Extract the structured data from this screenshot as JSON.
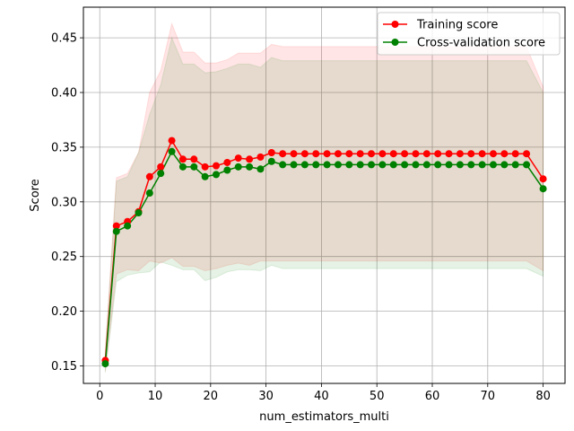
{
  "chart_data": {
    "type": "line",
    "title": "",
    "xlabel": "num_estimators_multi",
    "ylabel": "Score",
    "xlim": [
      -2.95,
      83.95
    ],
    "ylim": [
      0.134,
      0.478
    ],
    "xticks": [
      0,
      10,
      20,
      30,
      40,
      50,
      60,
      70,
      80
    ],
    "yticks": [
      0.15,
      0.2,
      0.25,
      0.3,
      0.35,
      0.4,
      0.45
    ],
    "grid": true,
    "legend_position": "top-right",
    "x": [
      1,
      3,
      5,
      7,
      9,
      11,
      13,
      15,
      17,
      19,
      21,
      23,
      25,
      27,
      29,
      31,
      33,
      35,
      37,
      39,
      41,
      43,
      45,
      47,
      49,
      51,
      53,
      55,
      57,
      59,
      61,
      63,
      65,
      67,
      69,
      71,
      73,
      75,
      77,
      80
    ],
    "series": [
      {
        "name": "Training score",
        "color": "#ff0000",
        "fill_color": "#ff0000",
        "values": [
          0.155,
          0.278,
          0.282,
          0.291,
          0.323,
          0.332,
          0.356,
          0.339,
          0.339,
          0.332,
          0.333,
          0.336,
          0.34,
          0.339,
          0.341,
          0.345,
          0.344,
          0.344,
          0.344,
          0.344,
          0.344,
          0.344,
          0.344,
          0.344,
          0.344,
          0.344,
          0.344,
          0.344,
          0.344,
          0.344,
          0.344,
          0.344,
          0.344,
          0.344,
          0.344,
          0.344,
          0.344,
          0.344,
          0.344,
          0.321
        ],
        "upper": [
          0.165,
          0.322,
          0.326,
          0.345,
          0.4,
          0.42,
          0.463,
          0.437,
          0.437,
          0.427,
          0.427,
          0.43,
          0.436,
          0.436,
          0.436,
          0.444,
          0.442,
          0.442,
          0.442,
          0.442,
          0.442,
          0.442,
          0.442,
          0.442,
          0.442,
          0.442,
          0.442,
          0.442,
          0.442,
          0.442,
          0.442,
          0.442,
          0.442,
          0.442,
          0.442,
          0.442,
          0.442,
          0.442,
          0.442,
          0.405
        ],
        "lower": [
          0.145,
          0.234,
          0.238,
          0.237,
          0.246,
          0.244,
          0.249,
          0.241,
          0.241,
          0.237,
          0.239,
          0.242,
          0.244,
          0.242,
          0.246,
          0.246,
          0.246,
          0.246,
          0.246,
          0.246,
          0.246,
          0.246,
          0.246,
          0.246,
          0.246,
          0.246,
          0.246,
          0.246,
          0.246,
          0.246,
          0.246,
          0.246,
          0.246,
          0.246,
          0.246,
          0.246,
          0.246,
          0.246,
          0.246,
          0.237
        ]
      },
      {
        "name": "Cross-validation score",
        "color": "#008000",
        "fill_color": "#008000",
        "values": [
          0.152,
          0.273,
          0.278,
          0.29,
          0.308,
          0.326,
          0.346,
          0.332,
          0.332,
          0.323,
          0.325,
          0.329,
          0.332,
          0.332,
          0.33,
          0.337,
          0.334,
          0.334,
          0.334,
          0.334,
          0.334,
          0.334,
          0.334,
          0.334,
          0.334,
          0.334,
          0.334,
          0.334,
          0.334,
          0.334,
          0.334,
          0.334,
          0.334,
          0.334,
          0.334,
          0.334,
          0.334,
          0.334,
          0.334,
          0.312
        ],
        "upper": [
          0.16,
          0.319,
          0.323,
          0.345,
          0.38,
          0.407,
          0.45,
          0.426,
          0.426,
          0.418,
          0.419,
          0.422,
          0.426,
          0.426,
          0.423,
          0.432,
          0.429,
          0.429,
          0.429,
          0.429,
          0.429,
          0.429,
          0.429,
          0.429,
          0.429,
          0.429,
          0.429,
          0.429,
          0.429,
          0.429,
          0.429,
          0.429,
          0.429,
          0.429,
          0.429,
          0.429,
          0.429,
          0.429,
          0.429,
          0.4
        ],
        "lower": [
          0.144,
          0.227,
          0.233,
          0.235,
          0.236,
          0.245,
          0.242,
          0.238,
          0.238,
          0.228,
          0.231,
          0.236,
          0.238,
          0.238,
          0.237,
          0.242,
          0.239,
          0.239,
          0.239,
          0.239,
          0.239,
          0.239,
          0.239,
          0.239,
          0.239,
          0.239,
          0.239,
          0.239,
          0.239,
          0.239,
          0.239,
          0.239,
          0.239,
          0.239,
          0.239,
          0.239,
          0.239,
          0.239,
          0.239,
          0.232
        ]
      }
    ]
  }
}
